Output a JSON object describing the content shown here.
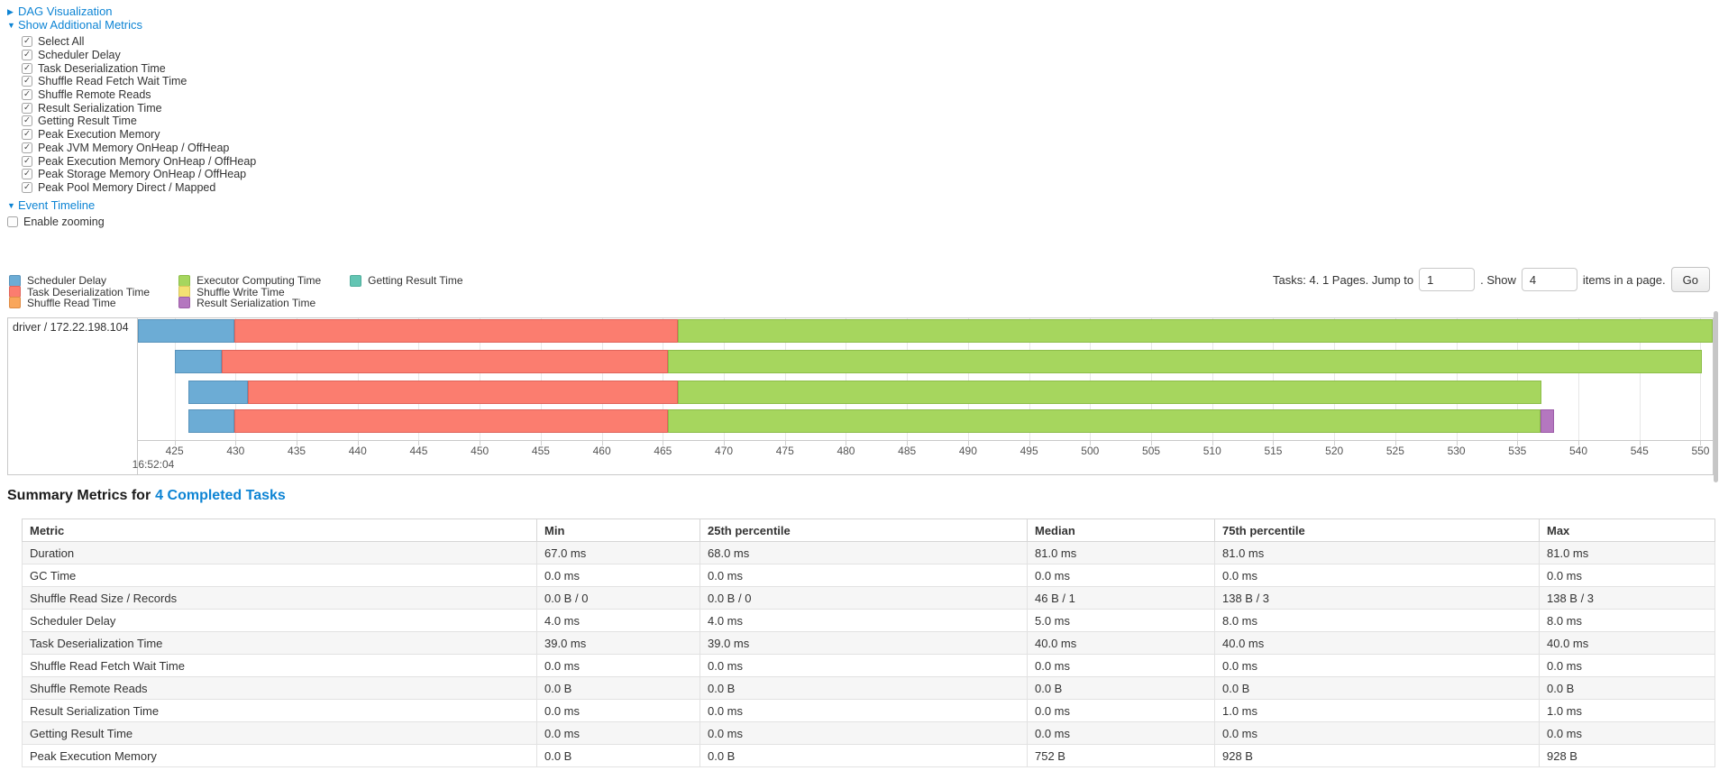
{
  "controls": {
    "dag_label": "DAG Visualization",
    "metrics_label": "Show Additional Metrics",
    "metrics_items": [
      "Select All",
      "Scheduler Delay",
      "Task Deserialization Time",
      "Shuffle Read Fetch Wait Time",
      "Shuffle Remote Reads",
      "Result Serialization Time",
      "Getting Result Time",
      "Peak Execution Memory",
      "Peak JVM Memory OnHeap / OffHeap",
      "Peak Execution Memory OnHeap / OffHeap",
      "Peak Storage Memory OnHeap / OffHeap",
      "Peak Pool Memory Direct / Mapped"
    ],
    "metrics_checked": true,
    "event_timeline_label": "Event Timeline",
    "enable_zooming_label": "Enable zooming",
    "enable_zooming_checked": false
  },
  "legend": {
    "items": [
      {
        "label": "Scheduler Delay",
        "color": "#6CACD5",
        "border": "#5893BB"
      },
      {
        "label": "Task Deserialization Time",
        "color": "#FB7D6F",
        "border": "#E0635A"
      },
      {
        "label": "Shuffle Read Time",
        "color": "#F9A65B",
        "border": "#DE8B43"
      },
      {
        "label": "Executor Computing Time",
        "color": "#A6D65E",
        "border": "#8CBD48"
      },
      {
        "label": "Shuffle Write Time",
        "color": "#F3E173",
        "border": "#D9C65A"
      },
      {
        "label": "Result Serialization Time",
        "color": "#B477BF",
        "border": "#9C5CA8"
      },
      {
        "label": "Getting Result Time",
        "color": "#63C5B3",
        "border": "#4FAD9B"
      }
    ]
  },
  "pagination": {
    "prefix": "Tasks: 4. 1 Pages. Jump to",
    "jump_value": "1",
    "mid": ". Show",
    "show_value": "4",
    "suffix": "items in a page.",
    "go_label": "Go"
  },
  "chart_data": {
    "type": "timeline-gantt",
    "executor_label": "driver / 172.22.198.104",
    "axis": {
      "min": 422,
      "max": 551,
      "tick_start": 425,
      "tick_end": 550,
      "tick_step": 5,
      "time_label": "16:52:04",
      "units": "ms after time_label"
    },
    "segment_colors": {
      "scheduler_delay": {
        "fill": "#6CACD5",
        "border": "#5893BB"
      },
      "task_deserialization": {
        "fill": "#FB7D6F",
        "border": "#E0635A"
      },
      "shuffle_read": {
        "fill": "#F9A65B",
        "border": "#DE8B43"
      },
      "executor_computing": {
        "fill": "#A6D65E",
        "border": "#8CBD48"
      },
      "shuffle_write": {
        "fill": "#F3E173",
        "border": "#D9C65A"
      },
      "result_serialization": {
        "fill": "#B477BF",
        "border": "#9C5CA8"
      },
      "getting_result": {
        "fill": "#63C5B3",
        "border": "#4FAD9B"
      }
    },
    "tasks": [
      {
        "segments": [
          {
            "type": "scheduler_delay",
            "start": 422.0,
            "end": 429.9
          },
          {
            "type": "task_deserialization",
            "start": 429.9,
            "end": 466.2
          },
          {
            "type": "executor_computing",
            "start": 466.2,
            "end": 551.0
          }
        ]
      },
      {
        "segments": [
          {
            "type": "scheduler_delay",
            "start": 425.0,
            "end": 428.9
          },
          {
            "type": "task_deserialization",
            "start": 428.9,
            "end": 465.4
          },
          {
            "type": "executor_computing",
            "start": 465.4,
            "end": 550.1
          }
        ]
      },
      {
        "segments": [
          {
            "type": "scheduler_delay",
            "start": 426.1,
            "end": 431.0
          },
          {
            "type": "task_deserialization",
            "start": 431.0,
            "end": 466.2
          },
          {
            "type": "executor_computing",
            "start": 466.2,
            "end": 537.0
          }
        ]
      },
      {
        "segments": [
          {
            "type": "scheduler_delay",
            "start": 426.1,
            "end": 429.9
          },
          {
            "type": "task_deserialization",
            "start": 429.9,
            "end": 465.4
          },
          {
            "type": "executor_computing",
            "start": 465.4,
            "end": 536.9
          },
          {
            "type": "result_serialization",
            "start": 536.9,
            "end": 538.0
          }
        ]
      }
    ]
  },
  "summary": {
    "heading_prefix": "Summary Metrics for",
    "heading_link": "4 Completed Tasks",
    "columns": [
      "Metric",
      "Min",
      "25th percentile",
      "Median",
      "75th percentile",
      "Max"
    ],
    "rows": [
      {
        "metric": "Duration",
        "values": [
          "67.0 ms",
          "68.0 ms",
          "81.0 ms",
          "81.0 ms",
          "81.0 ms"
        ]
      },
      {
        "metric": "GC Time",
        "values": [
          "0.0 ms",
          "0.0 ms",
          "0.0 ms",
          "0.0 ms",
          "0.0 ms"
        ]
      },
      {
        "metric": "Shuffle Read Size / Records",
        "values": [
          "0.0 B / 0",
          "0.0 B / 0",
          "46 B / 1",
          "138 B / 3",
          "138 B / 3"
        ]
      },
      {
        "metric": "Scheduler Delay",
        "values": [
          "4.0 ms",
          "4.0 ms",
          "5.0 ms",
          "8.0 ms",
          "8.0 ms"
        ]
      },
      {
        "metric": "Task Deserialization Time",
        "values": [
          "39.0 ms",
          "39.0 ms",
          "40.0 ms",
          "40.0 ms",
          "40.0 ms"
        ]
      },
      {
        "metric": "Shuffle Read Fetch Wait Time",
        "values": [
          "0.0 ms",
          "0.0 ms",
          "0.0 ms",
          "0.0 ms",
          "0.0 ms"
        ]
      },
      {
        "metric": "Shuffle Remote Reads",
        "values": [
          "0.0 B",
          "0.0 B",
          "0.0 B",
          "0.0 B",
          "0.0 B"
        ]
      },
      {
        "metric": "Result Serialization Time",
        "values": [
          "0.0 ms",
          "0.0 ms",
          "0.0 ms",
          "1.0 ms",
          "1.0 ms"
        ]
      },
      {
        "metric": "Getting Result Time",
        "values": [
          "0.0 ms",
          "0.0 ms",
          "0.0 ms",
          "0.0 ms",
          "0.0 ms"
        ]
      },
      {
        "metric": "Peak Execution Memory",
        "values": [
          "0.0 B",
          "0.0 B",
          "752 B",
          "928 B",
          "928 B"
        ]
      }
    ]
  }
}
